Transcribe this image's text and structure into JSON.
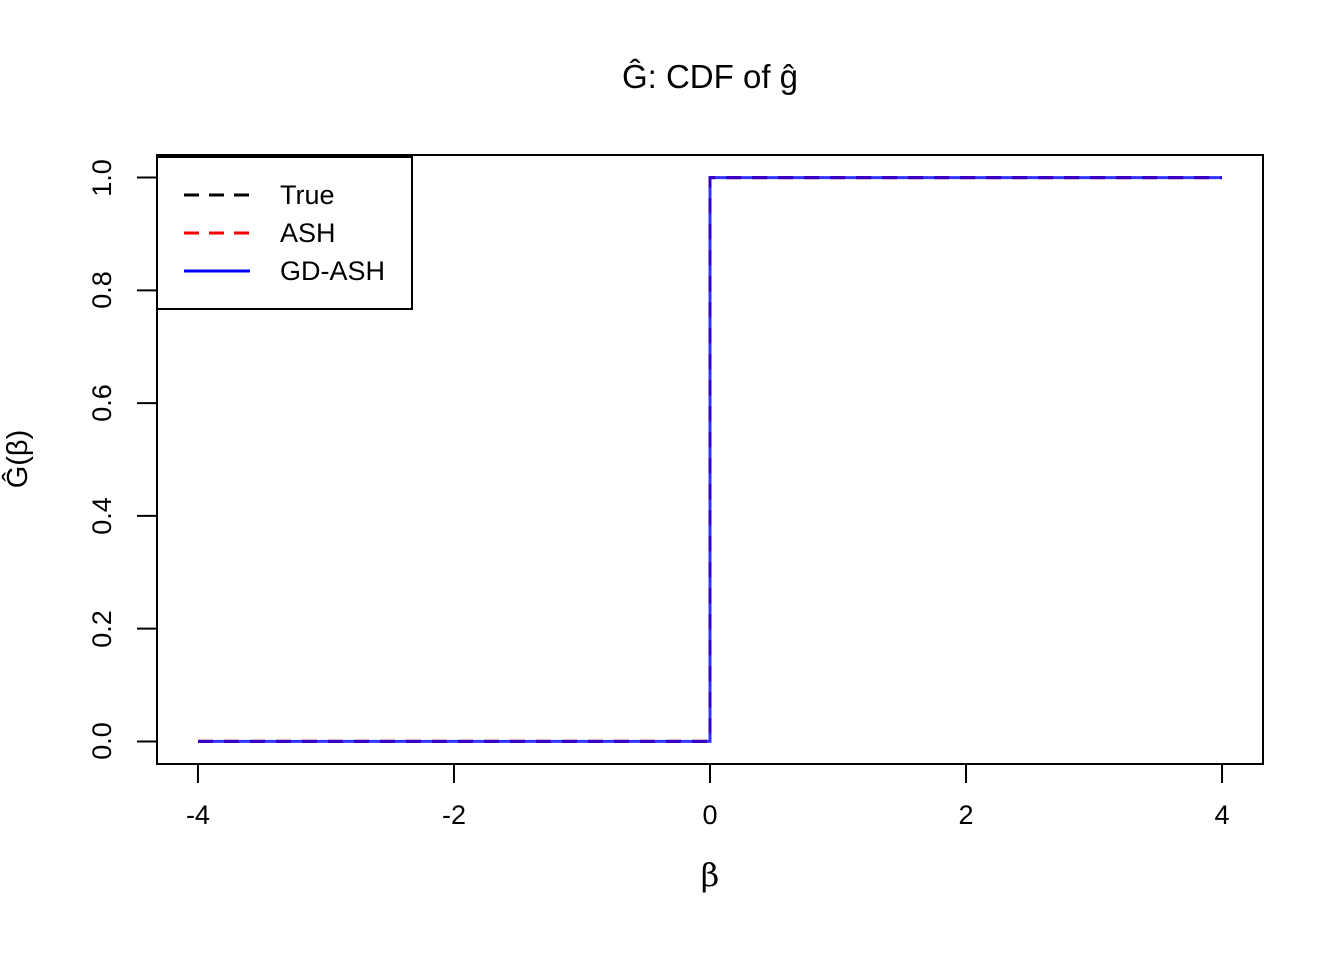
{
  "chart_data": {
    "type": "line",
    "title": "Ĝ: CDF of ĝ",
    "xlabel": "β",
    "ylabel": "Ĝ(β)",
    "xlim": [
      -4,
      4
    ],
    "ylim": [
      0,
      1
    ],
    "x_ticks": [
      -4,
      -2,
      0,
      2,
      4
    ],
    "x_tick_labels": [
      "-4",
      "-2",
      "0",
      "2",
      "4"
    ],
    "y_ticks": [
      0,
      0.2,
      0.4,
      0.6,
      0.8,
      1
    ],
    "y_tick_labels": [
      "0.0",
      "0.2",
      "0.4",
      "0.6",
      "0.8",
      "1.0"
    ],
    "grid": false,
    "legend_position": "topleft",
    "series": [
      {
        "name": "True",
        "color": "#000000",
        "style": "dashed",
        "points": [
          [
            -4,
            0
          ],
          [
            0,
            0
          ],
          [
            0,
            1
          ],
          [
            4,
            1
          ]
        ]
      },
      {
        "name": "ASH",
        "color": "#FF0000",
        "style": "dashed",
        "points": [
          [
            -4,
            0
          ],
          [
            0,
            0
          ],
          [
            0,
            1
          ],
          [
            4,
            1
          ]
        ]
      },
      {
        "name": "GD-ASH",
        "color": "#0000FF",
        "style": "solid",
        "points": [
          [
            -4,
            0
          ],
          [
            0,
            0
          ],
          [
            0,
            1
          ],
          [
            4,
            1
          ]
        ]
      }
    ],
    "note": "All three CDF curves coincide: step function equal to 0 for β < 0, jumping to 1 at β = 0"
  },
  "legend": {
    "items": [
      {
        "label": "True",
        "color": "#000000",
        "dash": "dashed"
      },
      {
        "label": "ASH",
        "color": "#FF0000",
        "dash": "dashed"
      },
      {
        "label": "GD-ASH",
        "color": "#0000FF",
        "dash": "solid"
      }
    ]
  }
}
